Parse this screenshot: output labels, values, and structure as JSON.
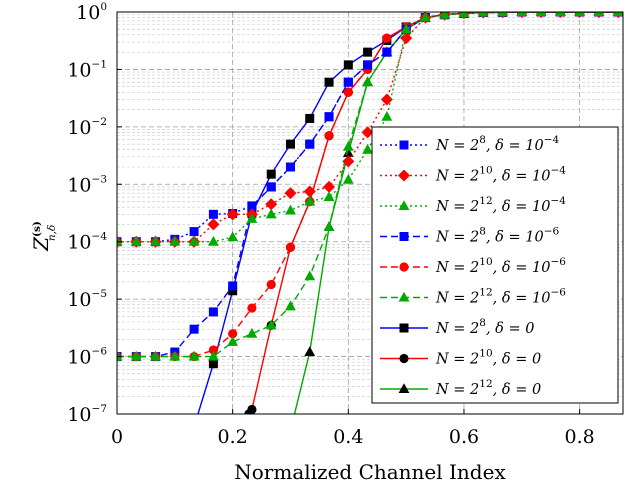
{
  "chart_data": {
    "type": "line",
    "xlabel": "Normalized Channel Index",
    "ylabel": "Z",
    "ylabel_sup": "(s)",
    "ylabel_sub": "n,δ",
    "xlim": [
      0,
      0.875
    ],
    "ylim_exp": [
      -7,
      0
    ],
    "y_scale": "log",
    "grid": true,
    "legend_placement": "right",
    "x_ticks": [
      {
        "value": 0,
        "label": "0"
      },
      {
        "value": 0.2,
        "label": "0.2"
      },
      {
        "value": 0.4,
        "label": "0.4"
      },
      {
        "value": 0.6,
        "label": "0.6"
      },
      {
        "value": 0.8,
        "label": "0.8"
      }
    ],
    "y_ticks": [
      {
        "exp": 0,
        "base": "10",
        "sup": "0"
      },
      {
        "exp": -1,
        "base": "10",
        "sup": "−1"
      },
      {
        "exp": -2,
        "base": "10",
        "sup": "−2"
      },
      {
        "exp": -3,
        "base": "10",
        "sup": "−3"
      },
      {
        "exp": -4,
        "base": "10",
        "sup": "−4"
      },
      {
        "exp": -5,
        "base": "10",
        "sup": "−5"
      },
      {
        "exp": -6,
        "base": "10",
        "sup": "−6"
      },
      {
        "exp": -7,
        "base": "10",
        "sup": "−7"
      }
    ],
    "series": [
      {
        "legend": {
          "N": "N = 2",
          "Nexp": "8",
          "d": ", δ = 10",
          "dexp": "−4"
        },
        "color": "#0000ff",
        "marker": "square",
        "dash": "dotted",
        "x": [
          0,
          0.0333,
          0.0667,
          0.1,
          0.1333,
          0.1667,
          0.2,
          0.2333,
          0.2667,
          0.3,
          0.3333,
          0.3667,
          0.4,
          0.4333,
          0.4667,
          0.5,
          0.5333,
          0.5667,
          0.6,
          0.6333,
          0.6667,
          0.7,
          0.7333,
          0.7667,
          0.8,
          0.8333,
          0.8667
        ],
        "y": [
          0.0001,
          0.0001,
          0.0001,
          0.00011,
          0.00015,
          0.0003,
          0.00031,
          0.00042,
          0.0009,
          0.002,
          0.005,
          0.015,
          0.06,
          0.12,
          0.2,
          0.5,
          0.8,
          0.9,
          0.95,
          0.98,
          0.99,
          1,
          1,
          1,
          1,
          1,
          1
        ]
      },
      {
        "legend": {
          "N": "N = 2",
          "Nexp": "10",
          "d": ", δ = 10",
          "dexp": "−4"
        },
        "color": "#ff0000",
        "marker": "diamond",
        "dash": "dotted",
        "x": [
          0,
          0.0333,
          0.0667,
          0.1,
          0.1333,
          0.1667,
          0.2,
          0.2333,
          0.2667,
          0.3,
          0.3333,
          0.3667,
          0.4,
          0.4333,
          0.4667,
          0.5,
          0.5333,
          0.5667,
          0.6,
          0.6333,
          0.6667,
          0.7,
          0.7333,
          0.7667,
          0.8,
          0.8333,
          0.8667
        ],
        "y": [
          0.0001,
          0.0001,
          0.0001,
          0.0001,
          0.0001,
          0.0002,
          0.0003,
          0.0003,
          0.00045,
          0.0007,
          0.00075,
          0.0009,
          0.0025,
          0.008,
          0.03,
          0.35,
          0.8,
          0.9,
          0.95,
          0.98,
          0.99,
          1,
          1,
          1,
          1,
          1,
          1
        ]
      },
      {
        "legend": {
          "N": "N = 2",
          "Nexp": "12",
          "d": ", δ = 10",
          "dexp": "−4"
        },
        "color": "#00aa00",
        "marker": "triangle",
        "dash": "dotted",
        "x": [
          0,
          0.0333,
          0.0667,
          0.1,
          0.1333,
          0.1667,
          0.2,
          0.2333,
          0.2667,
          0.3,
          0.3333,
          0.3667,
          0.4,
          0.4333,
          0.4667,
          0.5,
          0.5333,
          0.5667,
          0.6,
          0.6333,
          0.6667,
          0.7,
          0.7333,
          0.7667,
          0.8,
          0.8333,
          0.8667
        ],
        "y": [
          0.0001,
          0.0001,
          0.0001,
          0.0001,
          0.0001,
          0.0001,
          0.00012,
          0.00025,
          0.0003,
          0.00035,
          0.0005,
          0.0006,
          0.0012,
          0.004,
          0.015,
          0.5,
          0.8,
          0.9,
          0.95,
          0.98,
          0.99,
          1,
          1,
          1,
          1,
          1,
          1
        ]
      },
      {
        "legend": {
          "N": "N = 2",
          "Nexp": "8",
          "d": ", δ = 10",
          "dexp": "−6"
        },
        "color": "#0000ff",
        "marker": "square",
        "dash": "dashed",
        "x": [
          0,
          0.0333,
          0.0667,
          0.1,
          0.1333,
          0.1667,
          0.2,
          0.2333,
          0.2667,
          0.3,
          0.3333,
          0.3667,
          0.4,
          0.4333,
          0.4667,
          0.5,
          0.5333,
          0.5667,
          0.6,
          0.6333,
          0.6667,
          0.7,
          0.7333,
          0.7667,
          0.8,
          0.8333,
          0.8667
        ],
        "y": [
          1e-06,
          1e-06,
          1e-06,
          1.2e-06,
          3e-06,
          6e-06,
          1.7e-05,
          0.00041,
          0.0009,
          0.002,
          0.005,
          0.015,
          0.06,
          0.12,
          0.2,
          0.5,
          0.8,
          0.9,
          0.95,
          0.98,
          0.99,
          1,
          1,
          1,
          1,
          1,
          1
        ]
      },
      {
        "legend": {
          "N": "N = 2",
          "Nexp": "10",
          "d": ", δ = 10",
          "dexp": "−6"
        },
        "color": "#ff0000",
        "marker": "circle",
        "dash": "dashed",
        "x": [
          0,
          0.0333,
          0.0667,
          0.1,
          0.1333,
          0.1667,
          0.2,
          0.2333,
          0.2667,
          0.3,
          0.3333,
          0.3667,
          0.4,
          0.4333,
          0.4667,
          0.5,
          0.5333,
          0.5667,
          0.6,
          0.6333,
          0.6667,
          0.7,
          0.7333,
          0.7667,
          0.8,
          0.8333,
          0.8667
        ],
        "y": [
          1e-06,
          1e-06,
          1e-06,
          1e-06,
          1e-06,
          1.3e-06,
          2.5e-06,
          7e-06,
          1.8e-05,
          8e-05,
          0.0005,
          0.007,
          0.04,
          0.1,
          0.35,
          0.55,
          0.8,
          0.9,
          0.95,
          0.98,
          0.99,
          1,
          1,
          1,
          1,
          1,
          1
        ]
      },
      {
        "legend": {
          "N": "N = 2",
          "Nexp": "12",
          "d": ", δ = 10",
          "dexp": "−6"
        },
        "color": "#00aa00",
        "marker": "triangle",
        "dash": "dashed",
        "x": [
          0,
          0.0333,
          0.0667,
          0.1,
          0.1333,
          0.1667,
          0.2,
          0.2333,
          0.2667,
          0.3,
          0.3333,
          0.3667,
          0.4,
          0.4333,
          0.4667,
          0.5,
          0.5333,
          0.5667,
          0.6,
          0.6333,
          0.6667,
          0.7,
          0.7333,
          0.7667,
          0.8,
          0.8333,
          0.8667
        ],
        "y": [
          1e-06,
          1e-06,
          1e-06,
          1e-06,
          1e-06,
          1e-06,
          1.8e-06,
          2.5e-06,
          3.5e-06,
          7.5e-06,
          2.5e-05,
          0.00018,
          0.0045,
          0.06,
          0.2,
          0.5,
          0.8,
          0.9,
          0.95,
          0.98,
          0.99,
          1,
          1,
          1,
          1,
          1,
          1
        ]
      },
      {
        "legend": {
          "N": "N = 2",
          "Nexp": "8",
          "d": ", δ = 0",
          "dexp": ""
        },
        "color": "#000000",
        "marker": "square",
        "dash": "solid",
        "x": [
          0.14,
          0.1667,
          0.2,
          0.2333,
          0.2667,
          0.3,
          0.3333,
          0.3667,
          0.4,
          0.4333,
          0.4667,
          0.5,
          0.5333,
          0.5667,
          0.6,
          0.6333,
          0.6667,
          0.7,
          0.7333,
          0.7667,
          0.8,
          0.8333,
          0.8667
        ],
        "y": [
          1e-07,
          7.5e-07,
          1.4e-05,
          0.00031,
          0.0015,
          0.005,
          0.014,
          0.06,
          0.12,
          0.2,
          0.32,
          0.55,
          0.8,
          0.9,
          0.95,
          0.98,
          0.99,
          1,
          1,
          1,
          1,
          1,
          1
        ]
      },
      {
        "legend": {
          "N": "N = 2",
          "Nexp": "10",
          "d": ", δ = 0",
          "dexp": ""
        },
        "color": "#000000",
        "marker": "circle",
        "dash": "solid",
        "x": [
          0.228,
          0.2333,
          0.2667,
          0.3,
          0.3333,
          0.3667,
          0.4,
          0.4333,
          0.4667,
          0.5,
          0.5333,
          0.5667,
          0.6,
          0.6333,
          0.6667,
          0.7,
          0.7333,
          0.7667,
          0.8,
          0.8333,
          0.8667
        ],
        "y": [
          1e-07,
          1.2e-07,
          3.5e-06,
          8e-05,
          0.0005,
          0.007,
          0.04,
          0.1,
          0.35,
          0.55,
          0.8,
          0.9,
          0.95,
          0.98,
          0.99,
          1,
          1,
          1,
          1,
          1,
          1
        ]
      },
      {
        "legend": {
          "N": "N = 2",
          "Nexp": "12",
          "d": ", δ = 0",
          "dexp": ""
        },
        "color": "#000000",
        "marker": "triangle",
        "dash": "solid",
        "x": [
          0.307,
          0.3333,
          0.3667,
          0.4,
          0.4333,
          0.4667,
          0.5,
          0.5333,
          0.5667,
          0.6,
          0.6333,
          0.6667,
          0.7,
          0.7333,
          0.7667,
          0.8,
          0.8333,
          0.8667
        ],
        "y": [
          1e-07,
          1.2e-06,
          0.00018,
          0.0035,
          0.06,
          0.2,
          0.5,
          0.8,
          0.9,
          0.95,
          0.98,
          0.99,
          1,
          1,
          1,
          1,
          1,
          1
        ]
      }
    ]
  }
}
